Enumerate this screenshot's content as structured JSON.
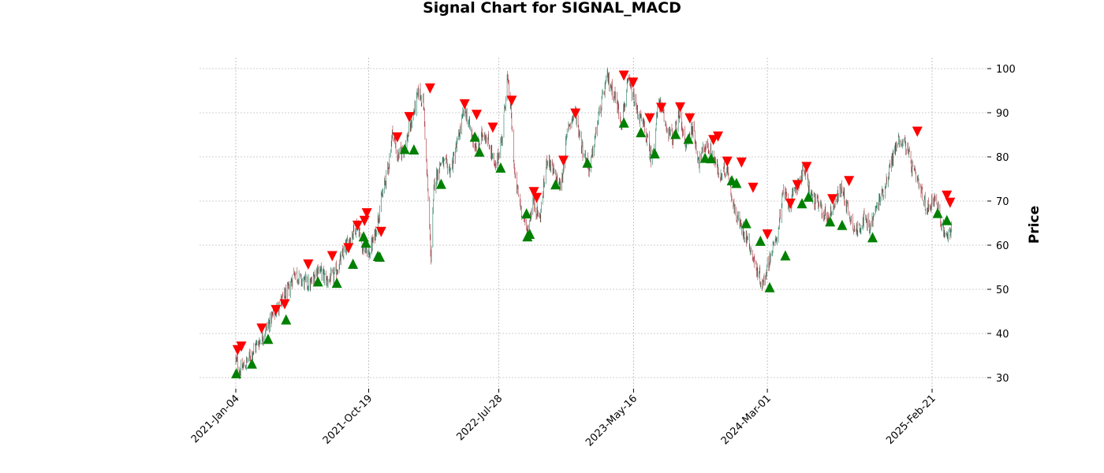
{
  "chart_data": {
    "type": "candlestick",
    "title": "Signal Chart for SIGNAL_MACD",
    "ylabel": "Price",
    "ylim": [
      28,
      102
    ],
    "yticks": [
      30,
      40,
      50,
      60,
      70,
      80,
      90,
      100
    ],
    "xlim": [
      "2020-10-20",
      "2025-06-20"
    ],
    "xticks": [
      {
        "date": "2021-01-04",
        "label": "2021-Jan-04"
      },
      {
        "date": "2021-10-19",
        "label": "2021-Oct-19"
      },
      {
        "date": "2022-07-28",
        "label": "2022-Jul-28"
      },
      {
        "date": "2023-05-16",
        "label": "2023-May-16"
      },
      {
        "date": "2024-03-01",
        "label": "2024-Mar-01"
      },
      {
        "date": "2025-02-21",
        "label": "2025-Feb-21"
      }
    ],
    "grid": true,
    "y_axis_position": "right",
    "colors": {
      "up": "#1f7a5c",
      "down": "#a8323c",
      "buy": "#008000",
      "sell": "#ff0000",
      "grid": "#a0a0a0"
    },
    "price_path": [
      [
        "2021-01-04",
        34
      ],
      [
        "2021-01-12",
        31.5
      ],
      [
        "2021-01-25",
        33
      ],
      [
        "2021-02-15",
        37
      ],
      [
        "2021-03-01",
        39
      ],
      [
        "2021-03-20",
        43
      ],
      [
        "2021-04-10",
        47
      ],
      [
        "2021-04-30",
        50
      ],
      [
        "2021-05-10",
        54
      ],
      [
        "2021-05-25",
        52
      ],
      [
        "2021-06-15",
        51
      ],
      [
        "2021-07-01",
        55
      ],
      [
        "2021-07-20",
        52
      ],
      [
        "2021-08-05",
        53
      ],
      [
        "2021-08-25",
        58
      ],
      [
        "2021-09-10",
        62
      ],
      [
        "2021-09-25",
        65
      ],
      [
        "2021-10-05",
        60
      ],
      [
        "2021-10-19",
        58
      ],
      [
        "2021-11-01",
        62
      ],
      [
        "2021-11-15",
        70
      ],
      [
        "2021-12-01",
        78
      ],
      [
        "2021-12-10",
        86
      ],
      [
        "2021-12-20",
        80
      ],
      [
        "2022-01-05",
        82
      ],
      [
        "2022-01-20",
        88
      ],
      [
        "2022-02-05",
        95
      ],
      [
        "2022-02-15",
        92
      ],
      [
        "2022-02-25",
        70
      ],
      [
        "2022-03-03",
        57
      ],
      [
        "2022-03-10",
        74
      ],
      [
        "2022-03-25",
        79
      ],
      [
        "2022-04-15",
        77
      ],
      [
        "2022-05-01",
        84
      ],
      [
        "2022-05-15",
        91
      ],
      [
        "2022-05-30",
        85
      ],
      [
        "2022-06-10",
        81
      ],
      [
        "2022-06-25",
        86
      ],
      [
        "2022-07-10",
        82
      ],
      [
        "2022-07-20",
        77
      ],
      [
        "2022-08-05",
        85
      ],
      [
        "2022-08-15",
        98
      ],
      [
        "2022-08-22",
        92
      ],
      [
        "2022-09-01",
        75
      ],
      [
        "2022-09-15",
        68
      ],
      [
        "2022-09-28",
        63
      ],
      [
        "2022-10-10",
        70
      ],
      [
        "2022-10-25",
        66
      ],
      [
        "2022-11-10",
        80
      ],
      [
        "2022-11-25",
        76
      ],
      [
        "2022-12-10",
        73
      ],
      [
        "2022-12-25",
        87
      ],
      [
        "2023-01-10",
        90
      ],
      [
        "2023-01-25",
        82
      ],
      [
        "2023-02-10",
        77
      ],
      [
        "2023-03-01",
        89
      ],
      [
        "2023-03-20",
        98
      ],
      [
        "2023-04-05",
        94
      ],
      [
        "2023-04-20",
        88
      ],
      [
        "2023-05-05",
        97
      ],
      [
        "2023-05-25",
        90
      ],
      [
        "2023-06-10",
        86
      ],
      [
        "2023-06-25",
        79
      ],
      [
        "2023-07-10",
        93
      ],
      [
        "2023-07-25",
        87
      ],
      [
        "2023-08-10",
        84
      ],
      [
        "2023-08-25",
        90
      ],
      [
        "2023-09-05",
        82
      ],
      [
        "2023-09-20",
        87
      ],
      [
        "2023-10-05",
        79
      ],
      [
        "2023-10-20",
        83
      ],
      [
        "2023-11-05",
        80
      ],
      [
        "2023-11-20",
        75
      ],
      [
        "2023-12-05",
        78
      ],
      [
        "2023-12-20",
        68
      ],
      [
        "2024-01-05",
        64
      ],
      [
        "2024-01-20",
        61
      ],
      [
        "2024-02-05",
        55
      ],
      [
        "2024-02-20",
        51
      ],
      [
        "2024-03-05",
        57
      ],
      [
        "2024-03-20",
        61
      ],
      [
        "2024-04-05",
        72
      ],
      [
        "2024-04-20",
        69
      ],
      [
        "2024-05-05",
        74
      ],
      [
        "2024-05-20",
        77
      ],
      [
        "2024-06-05",
        71
      ],
      [
        "2024-06-20",
        69
      ],
      [
        "2024-07-10",
        66
      ],
      [
        "2024-07-25",
        70
      ],
      [
        "2024-08-10",
        73
      ],
      [
        "2024-08-25",
        67
      ],
      [
        "2024-09-10",
        63
      ],
      [
        "2024-09-25",
        66
      ],
      [
        "2024-10-10",
        64
      ],
      [
        "2024-10-25",
        69
      ],
      [
        "2024-11-10",
        73
      ],
      [
        "2024-11-25",
        79
      ],
      [
        "2024-12-10",
        84
      ],
      [
        "2024-12-25",
        83
      ],
      [
        "2025-01-10",
        77
      ],
      [
        "2025-01-25",
        73
      ],
      [
        "2025-02-10",
        68
      ],
      [
        "2025-02-25",
        71
      ],
      [
        "2025-03-10",
        66
      ],
      [
        "2025-03-25",
        62
      ],
      [
        "2025-04-05",
        64
      ]
    ],
    "signals": {
      "buy": [
        [
          "2021-01-05",
          31
        ],
        [
          "2021-02-08",
          33.2
        ],
        [
          "2021-03-15",
          38.8
        ],
        [
          "2021-04-23",
          43.2
        ],
        [
          "2021-07-01",
          51.8
        ],
        [
          "2021-08-11",
          51.5
        ],
        [
          "2021-09-15",
          55.8
        ],
        [
          "2021-10-08",
          62
        ],
        [
          "2021-10-13",
          60.6
        ],
        [
          "2021-11-08",
          57.6
        ],
        [
          "2021-11-12",
          57.4
        ],
        [
          "2022-01-05",
          81.8
        ],
        [
          "2022-01-25",
          81.7
        ],
        [
          "2022-03-25",
          73.9
        ],
        [
          "2022-06-06",
          84.6
        ],
        [
          "2022-06-16",
          81.2
        ],
        [
          "2022-08-01",
          77.6
        ],
        [
          "2022-09-26",
          67.2
        ],
        [
          "2022-09-28",
          62
        ],
        [
          "2022-10-03",
          62.6
        ],
        [
          "2022-11-28",
          73.8
        ],
        [
          "2023-02-05",
          78.7
        ],
        [
          "2023-04-25",
          87.8
        ],
        [
          "2023-06-01",
          85.6
        ],
        [
          "2023-07-01",
          80.8
        ],
        [
          "2023-08-15",
          85.2
        ],
        [
          "2023-09-12",
          84.1
        ],
        [
          "2023-10-18",
          79.8
        ],
        [
          "2023-10-31",
          79.7
        ],
        [
          "2023-12-15",
          74.7
        ],
        [
          "2023-12-25",
          74.1
        ],
        [
          "2024-01-15",
          65
        ],
        [
          "2024-02-15",
          61
        ],
        [
          "2024-03-06",
          50.5
        ],
        [
          "2024-04-09",
          57.7
        ],
        [
          "2024-05-15",
          69.5
        ],
        [
          "2024-05-29",
          71
        ],
        [
          "2024-07-15",
          65.4
        ],
        [
          "2024-08-10",
          64.6
        ],
        [
          "2024-10-15",
          61.8
        ],
        [
          "2025-03-05",
          67.3
        ],
        [
          "2025-03-25",
          65.7
        ]
      ],
      "sell": [
        [
          "2021-01-08",
          36.2
        ],
        [
          "2021-01-16",
          37
        ],
        [
          "2021-03-01",
          41.1
        ],
        [
          "2021-04-01",
          45.3
        ],
        [
          "2021-04-20",
          46.6
        ],
        [
          "2021-06-10",
          55.6
        ],
        [
          "2021-08-01",
          57.5
        ],
        [
          "2021-09-05",
          59.3
        ],
        [
          "2021-09-25",
          64.4
        ],
        [
          "2021-10-10",
          65.5
        ],
        [
          "2021-10-15",
          67.2
        ],
        [
          "2021-11-15",
          63
        ],
        [
          "2021-12-20",
          84.4
        ],
        [
          "2022-01-15",
          89
        ],
        [
          "2022-03-01",
          95.5
        ],
        [
          "2022-05-15",
          91.9
        ],
        [
          "2022-06-10",
          89.5
        ],
        [
          "2022-07-15",
          86.6
        ],
        [
          "2022-08-25",
          92.7
        ],
        [
          "2022-10-12",
          72
        ],
        [
          "2022-10-18",
          70.7
        ],
        [
          "2022-12-15",
          79.1
        ],
        [
          "2023-01-10",
          89.8
        ],
        [
          "2023-04-25",
          98.4
        ],
        [
          "2023-05-15",
          96.8
        ],
        [
          "2023-06-20",
          88.7
        ],
        [
          "2023-07-15",
          91.1
        ],
        [
          "2023-08-25",
          91.2
        ],
        [
          "2023-09-15",
          88.7
        ],
        [
          "2023-11-05",
          83.8
        ],
        [
          "2023-11-15",
          84.6
        ],
        [
          "2023-12-05",
          78.9
        ],
        [
          "2024-01-05",
          78.7
        ],
        [
          "2024-01-30",
          73
        ],
        [
          "2024-03-01",
          62.4
        ],
        [
          "2024-04-20",
          69.4
        ],
        [
          "2024-05-05",
          73.6
        ],
        [
          "2024-05-25",
          77.7
        ],
        [
          "2024-07-20",
          70.4
        ],
        [
          "2024-08-25",
          74.5
        ],
        [
          "2025-01-20",
          85.7
        ],
        [
          "2025-03-25",
          71.2
        ],
        [
          "2025-04-01",
          69.6
        ]
      ]
    }
  }
}
